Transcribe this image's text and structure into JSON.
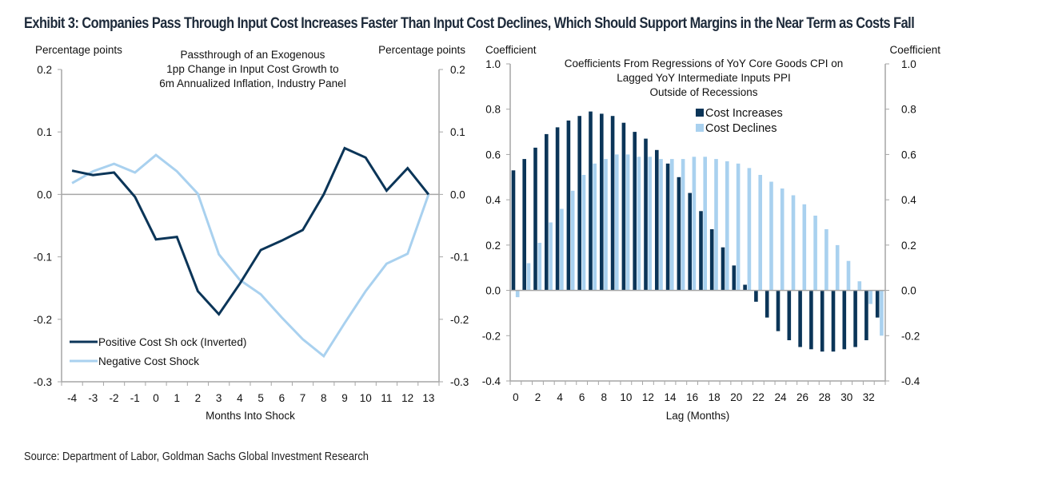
{
  "title": "Exhibit 3: Companies Pass Through Input Cost Increases Faster Than Input Cost Declines, Which Should Support Margins in the Near Term as Costs Fall",
  "source": "Source: Department of Labor, Goldman Sachs Global Investment Research",
  "colors": {
    "dark": "#0b3558",
    "light": "#a9d1ef",
    "axis": "#a6a6a6",
    "zero": "#a6a6a6"
  },
  "chart_data": [
    {
      "type": "line",
      "title": "Passthrough of an Exogenous 1pp Change in Input Cost Growth to 6m Annualized Inflation, Industry Panel",
      "title_lines": [
        "Passthrough of an Exogenous",
        "1pp Change in Input Cost Growth to",
        "6m Annualized Inflation, Industry Panel"
      ],
      "xlabel": "Months Into Shock",
      "ylabel_left": "Percentage points",
      "ylabel_right": "Percentage points",
      "ylim": [
        -0.3,
        0.2
      ],
      "yticks": [
        0.2,
        0.1,
        0.0,
        -0.1,
        -0.2,
        -0.3
      ],
      "ytick_labels": [
        "0.2",
        "0.1",
        "0.0",
        "-0.1",
        "-0.2",
        "-0.3"
      ],
      "x": [
        -4,
        -3,
        -2,
        -1,
        0,
        1,
        2,
        3,
        4,
        5,
        6,
        7,
        8,
        9,
        10,
        11,
        12,
        13
      ],
      "xtick_labels": [
        "-4",
        "-3",
        "-2",
        "-1",
        "0",
        "1",
        "2",
        "3",
        "4",
        "5",
        "6",
        "7",
        "8",
        "9",
        "10",
        "11",
        "12",
        "13"
      ],
      "legend_position": "bottom-left",
      "series": [
        {
          "name": "Positive Cost Sh ock (Inverted)",
          "color": "#0b3558",
          "values": [
            0.038,
            0.031,
            0.035,
            -0.004,
            -0.072,
            -0.068,
            -0.155,
            -0.192,
            -0.143,
            -0.089,
            -0.074,
            -0.057,
            0.0,
            0.074,
            0.059,
            0.006,
            0.042,
            0.0
          ]
        },
        {
          "name": "Negative Cost Shock",
          "color": "#a9d1ef",
          "values": [
            0.018,
            0.037,
            0.049,
            0.035,
            0.063,
            0.037,
            0.001,
            -0.096,
            -0.137,
            -0.16,
            -0.197,
            -0.232,
            -0.259,
            -0.206,
            -0.155,
            -0.111,
            -0.095,
            0.0
          ]
        }
      ]
    },
    {
      "type": "bar",
      "title": "Coefficients From Regressions of YoY Core Goods CPI on Lagged YoY Intermediate Inputs PPI Outside of Recessions",
      "title_lines": [
        "Coefficients From Regressions of YoY Core Goods CPI on",
        "Lagged YoY Intermediate Inputs PPI",
        "Outside of Recessions"
      ],
      "xlabel": "Lag (Months)",
      "ylabel_left": "Coefficient",
      "ylabel_right": "Coefficient",
      "ylim": [
        -0.4,
        1.0
      ],
      "yticks": [
        1.0,
        0.8,
        0.6,
        0.4,
        0.2,
        0.0,
        -0.2,
        -0.4
      ],
      "ytick_labels": [
        "1.0",
        "0.8",
        "0.6",
        "0.4",
        "0.2",
        "0.0",
        "-0.2",
        "-0.4"
      ],
      "categories": [
        0,
        1,
        2,
        3,
        4,
        5,
        6,
        7,
        8,
        9,
        10,
        11,
        12,
        13,
        14,
        15,
        16,
        17,
        18,
        19,
        20,
        21,
        22,
        23,
        24,
        25,
        26,
        27,
        28,
        29,
        30,
        31,
        32,
        33
      ],
      "xtick_labels": [
        "0",
        "2",
        "4",
        "6",
        "8",
        "10",
        "12",
        "14",
        "16",
        "18",
        "20",
        "22",
        "24",
        "26",
        "28",
        "30",
        "32"
      ],
      "legend_position": "top-right",
      "series": [
        {
          "name": "Cost Increases",
          "color": "#0b3558",
          "values": [
            0.53,
            0.58,
            0.63,
            0.69,
            0.72,
            0.75,
            0.77,
            0.79,
            0.78,
            0.77,
            0.74,
            0.7,
            0.67,
            0.62,
            0.56,
            0.5,
            0.43,
            0.35,
            0.27,
            0.19,
            0.11,
            0.025,
            -0.05,
            -0.12,
            -0.18,
            -0.22,
            -0.25,
            -0.26,
            -0.27,
            -0.27,
            -0.26,
            -0.25,
            -0.22,
            -0.12
          ]
        },
        {
          "name": "Cost Declines",
          "color": "#a9d1ef",
          "values": [
            -0.03,
            0.12,
            0.21,
            0.3,
            0.36,
            0.44,
            0.51,
            0.56,
            0.58,
            0.6,
            0.6,
            0.59,
            0.59,
            0.58,
            0.58,
            0.58,
            0.59,
            0.59,
            0.58,
            0.57,
            0.56,
            0.54,
            0.51,
            0.48,
            0.45,
            0.42,
            0.38,
            0.33,
            0.27,
            0.2,
            0.13,
            0.04,
            -0.06,
            -0.2
          ]
        }
      ]
    }
  ]
}
